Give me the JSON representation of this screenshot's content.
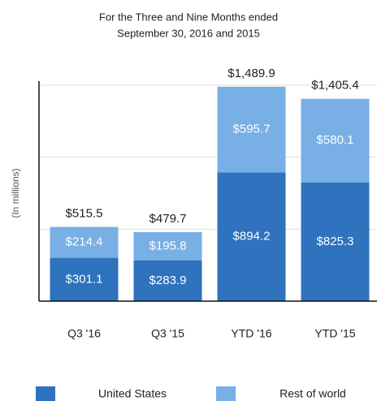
{
  "chart_data": {
    "type": "stacked_bar",
    "title": [
      "For the Three and Nine Months ended",
      "September 30, 2016 and 2015"
    ],
    "y_label": "(In millions)",
    "categories": [
      "Q3 '16",
      "Q3 '15",
      "YTD '16",
      "YTD '15"
    ],
    "series": [
      {
        "name": "United States",
        "color": "#2f72bd",
        "values": [
          301.1,
          283.9,
          894.2,
          825.3
        ],
        "value_labels": [
          "$301.1",
          "$283.9",
          "$894.2",
          "$825.3"
        ]
      },
      {
        "name": "Rest of world",
        "color": "#78afe5",
        "values": [
          214.4,
          195.8,
          595.7,
          580.1
        ],
        "value_labels": [
          "$214.4",
          "$195.8",
          "$595.7",
          "$580.1"
        ]
      }
    ],
    "totals": [
      515.5,
      479.7,
      1489.9,
      1405.4
    ],
    "total_labels": [
      "$515.5",
      "$479.7",
      "$1,489.9",
      "$1,405.4"
    ],
    "ylim": [
      0,
      1500
    ],
    "yticks": [
      0,
      500,
      1000,
      1500
    ],
    "grid": true,
    "legend": "bottom"
  }
}
